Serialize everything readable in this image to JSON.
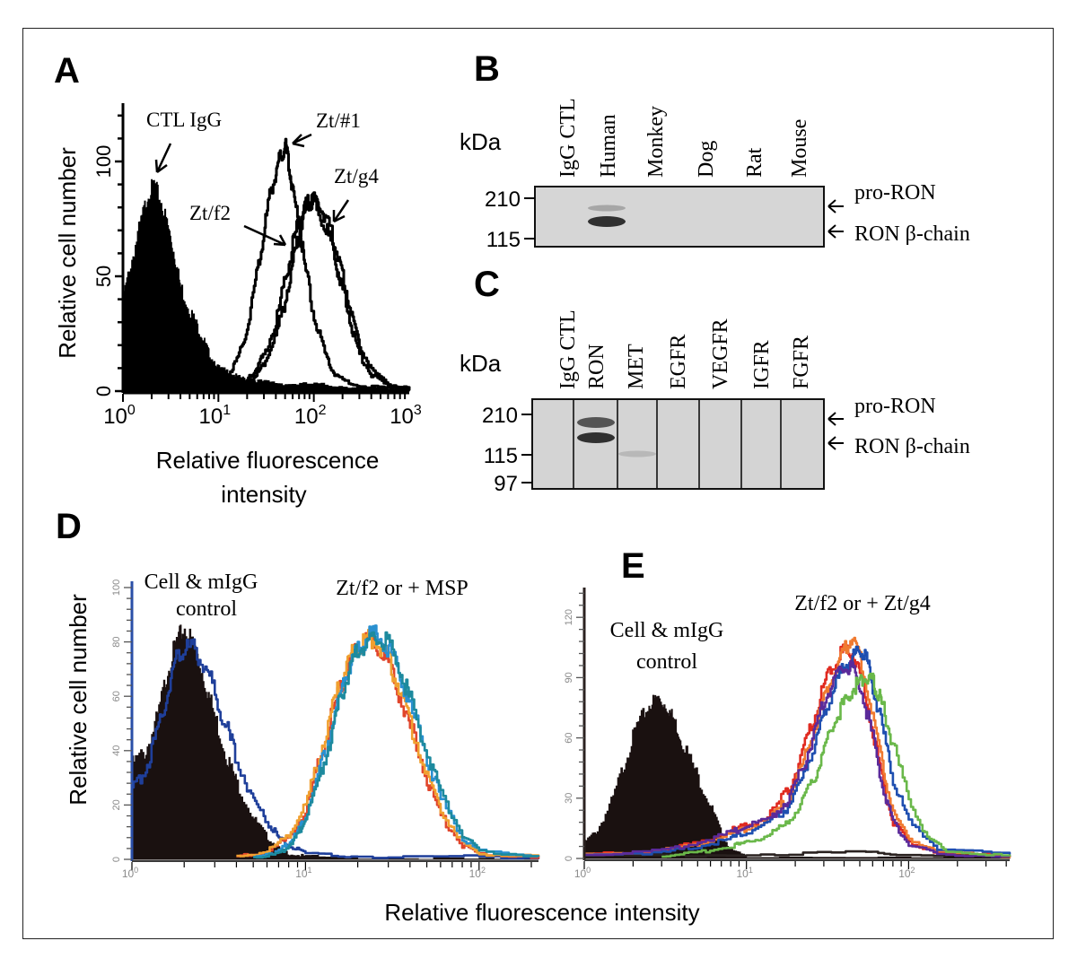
{
  "figure": {
    "panels": [
      "A",
      "B",
      "C",
      "D",
      "E"
    ],
    "shared_xlabel_DE": "Relative fluorescence intensity"
  },
  "chart_data": [
    {
      "panel": "A",
      "type": "area",
      "xscale": "log",
      "xlim": [
        1,
        1000
      ],
      "ylim": [
        0,
        125
      ],
      "xticks": [
        1,
        10,
        100,
        1000
      ],
      "xtick_labels": [
        "10",
        "10",
        "10",
        "10"
      ],
      "xtick_exponents": [
        "0",
        "1",
        "2",
        "3"
      ],
      "yticks": [
        0,
        50,
        100
      ],
      "ytick_labels": [
        "0",
        "50",
        "100"
      ],
      "xlabel": [
        "Relative fluorescence",
        "intensity"
      ],
      "ylabel": "Relative cell number",
      "grid": false,
      "annotations": [
        "CTL IgG",
        "Zt/#1",
        "Zt/f2",
        "Zt/g4"
      ],
      "series": [
        {
          "name": "CTL IgG",
          "filled": true,
          "color": "#000000",
          "x": [
            1,
            1.2,
            1.5,
            1.8,
            2.1,
            2.5,
            3,
            3.5,
            4,
            5,
            6,
            7,
            8,
            10,
            13,
            16,
            20,
            30,
            50,
            100,
            200,
            500,
            1000
          ],
          "y": [
            40,
            55,
            72,
            85,
            90,
            82,
            70,
            58,
            45,
            35,
            28,
            22,
            16,
            10,
            8,
            6,
            5,
            4,
            3,
            3,
            2,
            1,
            1
          ]
        },
        {
          "name": "Zt/#1",
          "filled": false,
          "color": "#000000",
          "x": [
            10,
            13,
            16,
            20,
            25,
            30,
            35,
            40,
            45,
            50,
            55,
            60,
            70,
            80,
            100,
            130,
            160,
            200,
            300,
            1000
          ],
          "y": [
            6,
            8,
            14,
            28,
            50,
            70,
            86,
            96,
            103,
            107,
            98,
            88,
            72,
            55,
            32,
            16,
            8,
            5,
            2,
            1
          ]
        },
        {
          "name": "Zt/f2",
          "filled": false,
          "color": "#000000",
          "x": [
            20,
            25,
            30,
            40,
            50,
            60,
            70,
            80,
            90,
            100,
            120,
            150,
            180,
            200,
            250,
            300,
            400,
            600,
            1000
          ],
          "y": [
            5,
            10,
            16,
            30,
            48,
            64,
            74,
            80,
            83,
            82,
            76,
            65,
            52,
            44,
            28,
            16,
            7,
            2,
            1
          ]
        },
        {
          "name": "Zt/g4",
          "filled": false,
          "color": "#000000",
          "x": [
            20,
            25,
            30,
            40,
            50,
            60,
            70,
            80,
            90,
            100,
            120,
            150,
            180,
            200,
            250,
            300,
            400,
            600,
            1000
          ],
          "y": [
            4,
            7,
            12,
            24,
            40,
            56,
            68,
            77,
            82,
            84,
            80,
            70,
            58,
            50,
            34,
            20,
            9,
            3,
            1
          ]
        }
      ]
    },
    {
      "panel": "B",
      "type": "table",
      "kind": "western-blot",
      "ylabel": "kDa",
      "mw_markers": [
        "210",
        "115"
      ],
      "lanes": [
        "IgG  CTL",
        "Human",
        "Monkey",
        "Dog",
        "Rat",
        "Mouse"
      ],
      "band_labels": [
        "pro-RON",
        "RON β-chain"
      ],
      "bands": [
        {
          "lane": "Human",
          "band": "pro-RON",
          "intensity": 0.25
        },
        {
          "lane": "Human",
          "band": "RON β-chain",
          "intensity": 0.9
        }
      ]
    },
    {
      "panel": "C",
      "type": "table",
      "kind": "western-blot",
      "ylabel": "kDa",
      "mw_markers": [
        "210",
        "115",
        "97"
      ],
      "lanes": [
        "IgG  CTL",
        "RON",
        "MET",
        "EGFR",
        "VEGFR",
        "IGFR",
        "FGFR"
      ],
      "band_labels": [
        "pro-RON",
        "RON β-chain"
      ],
      "bands": [
        {
          "lane": "RON",
          "band": "pro-RON",
          "intensity": 0.7
        },
        {
          "lane": "RON",
          "band": "RON β-chain",
          "intensity": 0.9
        },
        {
          "lane": "MET",
          "band": "~115",
          "intensity": 0.15
        }
      ]
    },
    {
      "panel": "D",
      "type": "line",
      "xscale": "log",
      "xlim": [
        1,
        220
      ],
      "ylim": [
        0,
        100
      ],
      "xticks": [
        1,
        10,
        100
      ],
      "xtick_labels": [
        "10",
        "10",
        "10"
      ],
      "xtick_exponents": [
        "0",
        "1",
        "2"
      ],
      "yticks": [
        0,
        20,
        40,
        60,
        80,
        100
      ],
      "ytick_labels": [
        "0",
        "20",
        "40",
        "60",
        "80",
        "100"
      ],
      "ylabel": "Relative cell number",
      "xlabel": "Relative fluorescence intensity",
      "grid": false,
      "annotations": [
        "Cell & mIgG",
        "control",
        "Zt/f2 or + MSP"
      ],
      "series": [
        {
          "name": "Cell control (filled)",
          "filled": true,
          "color": "#1a1110",
          "x": [
            1,
            1.2,
            1.4,
            1.6,
            1.8,
            2.0,
            2.3,
            2.6,
            3.0,
            3.5,
            4,
            5,
            6,
            7,
            8,
            10,
            20,
            100,
            220
          ],
          "y": [
            35,
            40,
            52,
            70,
            80,
            85,
            78,
            66,
            52,
            38,
            28,
            15,
            8,
            4,
            2,
            1,
            0.5,
            0,
            0
          ]
        },
        {
          "name": "mIgG control",
          "filled": false,
          "color": "#1f3f9a",
          "x": [
            1,
            1.2,
            1.4,
            1.6,
            1.8,
            2.0,
            2.3,
            2.6,
            3.0,
            3.5,
            4,
            5,
            6,
            7,
            8,
            10,
            20,
            100,
            220
          ],
          "y": [
            25,
            34,
            46,
            62,
            74,
            78,
            77,
            72,
            62,
            48,
            37,
            22,
            14,
            8,
            5,
            2,
            1,
            1,
            0.5
          ]
        },
        {
          "name": "Zt/f2 (red)",
          "filled": false,
          "color": "#e0452b",
          "x": [
            4,
            6,
            8,
            10,
            12,
            14,
            16,
            18,
            20,
            23,
            26,
            30,
            35,
            40,
            50,
            60,
            80,
            100,
            220
          ],
          "y": [
            1,
            3,
            8,
            18,
            36,
            52,
            64,
            72,
            78,
            80,
            79,
            72,
            60,
            48,
            30,
            16,
            5,
            2,
            1
          ]
        },
        {
          "name": "Zt/f2 + MSP (orange)",
          "filled": false,
          "color": "#f0a030",
          "x": [
            4,
            6,
            8,
            10,
            12,
            14,
            16,
            18,
            20,
            23,
            26,
            30,
            35,
            40,
            50,
            60,
            80,
            100,
            220
          ],
          "y": [
            1,
            3,
            9,
            20,
            38,
            54,
            66,
            74,
            79,
            82,
            80,
            74,
            62,
            50,
            32,
            18,
            6,
            2,
            1
          ]
        },
        {
          "name": "Zt/f2 (light blue)",
          "filled": false,
          "color": "#2a90d0",
          "x": [
            5,
            7,
            8,
            9,
            10,
            12,
            14,
            16,
            18,
            20,
            23,
            26,
            30,
            35,
            40,
            50,
            60,
            80,
            100,
            220
          ],
          "y": [
            1,
            3,
            6,
            10,
            16,
            32,
            48,
            62,
            72,
            78,
            82,
            83,
            78,
            68,
            56,
            38,
            22,
            8,
            3,
            1
          ]
        },
        {
          "name": "Zt/f2 + MSP (teal)",
          "filled": false,
          "color": "#1d8a9e",
          "x": [
            5,
            7,
            8,
            9,
            10,
            12,
            14,
            16,
            18,
            20,
            23,
            26,
            30,
            35,
            40,
            50,
            60,
            80,
            100,
            220
          ],
          "y": [
            1,
            2,
            5,
            9,
            15,
            30,
            46,
            60,
            70,
            77,
            80,
            82,
            79,
            70,
            58,
            40,
            24,
            9,
            3,
            1
          ]
        }
      ]
    },
    {
      "panel": "E",
      "type": "line",
      "xscale": "log",
      "xlim": [
        1,
        420
      ],
      "ylim": [
        0,
        135
      ],
      "xticks": [
        1,
        10,
        100
      ],
      "xtick_labels": [
        "10",
        "10",
        "10"
      ],
      "xtick_exponents": [
        "0",
        "1",
        "2"
      ],
      "yticks": [
        0,
        30,
        60,
        90,
        120
      ],
      "ytick_labels": [
        "0",
        "30",
        "60",
        "90",
        "120"
      ],
      "ylabel": "",
      "xlabel": "Relative fluorescence intensity",
      "grid": false,
      "annotations": [
        "Cell & mIgG",
        "control",
        "Zt/f2 or + Zt/g4"
      ],
      "series": [
        {
          "name": "Cell control (filled)",
          "filled": true,
          "color": "#1a1110",
          "x": [
            1,
            1.2,
            1.5,
            1.8,
            2.1,
            2.5,
            2.8,
            3.2,
            3.6,
            4,
            5,
            6,
            7,
            8,
            10,
            420
          ],
          "y": [
            8,
            14,
            30,
            50,
            66,
            76,
            80,
            76,
            68,
            58,
            40,
            26,
            12,
            4,
            1,
            0.5
          ]
        },
        {
          "name": "mIgG control (dark)",
          "filled": false,
          "color": "#2a2220",
          "x": [
            1,
            10,
            50,
            100,
            420
          ],
          "y": [
            1,
            2,
            3,
            2,
            1
          ]
        },
        {
          "name": "Zt/f2 (red)",
          "filled": false,
          "color": "#e02a20",
          "x": [
            1,
            3,
            5,
            8,
            10,
            14,
            18,
            22,
            26,
            30,
            35,
            40,
            45,
            50,
            60,
            70,
            80,
            100,
            150,
            420
          ],
          "y": [
            2,
            4,
            8,
            14,
            16,
            22,
            34,
            52,
            70,
            86,
            98,
            104,
            102,
            92,
            64,
            36,
            18,
            8,
            3,
            1
          ]
        },
        {
          "name": "Zt/f2 + Zt/g4 (orange)",
          "filled": false,
          "color": "#f07a30",
          "x": [
            1,
            3,
            5,
            8,
            10,
            14,
            18,
            22,
            26,
            30,
            35,
            40,
            45,
            50,
            60,
            70,
            80,
            100,
            150,
            420
          ],
          "y": [
            2,
            4,
            7,
            12,
            15,
            20,
            30,
            46,
            64,
            80,
            94,
            104,
            110,
            100,
            72,
            44,
            22,
            10,
            3,
            1
          ]
        },
        {
          "name": "Zt/f2 (blue)",
          "filled": false,
          "color": "#1f4fb0",
          "x": [
            1,
            3,
            5,
            8,
            10,
            14,
            18,
            22,
            26,
            30,
            35,
            40,
            45,
            50,
            55,
            60,
            70,
            80,
            100,
            150,
            420
          ],
          "y": [
            2,
            3,
            6,
            10,
            13,
            18,
            26,
            40,
            56,
            72,
            86,
            96,
            100,
            104,
            100,
            86,
            62,
            40,
            18,
            5,
            2
          ]
        },
        {
          "name": "Zt/f2 + Zt/g4 (purple)",
          "filled": false,
          "color": "#5b2a9a",
          "x": [
            1,
            3,
            5,
            8,
            10,
            14,
            18,
            22,
            26,
            30,
            35,
            40,
            45,
            50,
            60,
            70,
            80,
            100,
            150,
            420
          ],
          "y": [
            2,
            4,
            8,
            13,
            16,
            20,
            30,
            44,
            62,
            78,
            90,
            96,
            94,
            86,
            60,
            34,
            18,
            7,
            2,
            1
          ]
        },
        {
          "name": "Zt/f2 + Zt/g4 (green)",
          "filled": false,
          "color": "#6ab84a",
          "x": [
            3,
            5,
            8,
            10,
            14,
            18,
            22,
            26,
            30,
            35,
            40,
            45,
            50,
            55,
            60,
            65,
            70,
            80,
            100,
            130,
            170,
            420
          ],
          "y": [
            1,
            3,
            6,
            8,
            12,
            18,
            28,
            40,
            54,
            68,
            78,
            84,
            88,
            90,
            88,
            82,
            74,
            56,
            30,
            10,
            4,
            1
          ]
        }
      ]
    }
  ]
}
